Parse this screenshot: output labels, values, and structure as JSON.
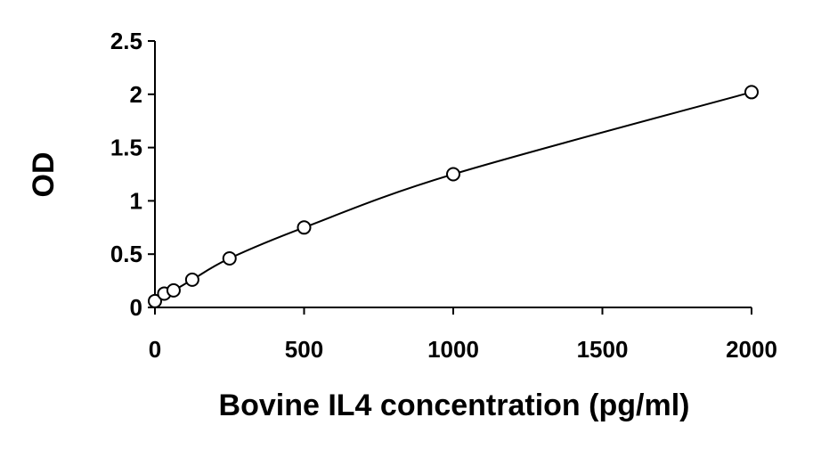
{
  "chart_data": {
    "type": "scatter",
    "title": "",
    "xlabel": "Bovine IL4 concentration (pg/ml)",
    "ylabel": "OD",
    "xlim": [
      0,
      2000
    ],
    "ylim": [
      0,
      2.5
    ],
    "x_ticks": [
      "0",
      "500",
      "1000",
      "1500",
      "2000"
    ],
    "y_ticks": [
      "0",
      "0.5",
      "1",
      "1.5",
      "2",
      "2.5"
    ],
    "grid": false,
    "legend": "none",
    "marker": "open-circle",
    "series": [
      {
        "x": [
          0,
          31.25,
          62.5,
          125,
          250,
          500,
          1000,
          2000
        ],
        "y": [
          0.06,
          0.13,
          0.16,
          0.26,
          0.46,
          0.75,
          1.25,
          2.02
        ]
      }
    ]
  }
}
